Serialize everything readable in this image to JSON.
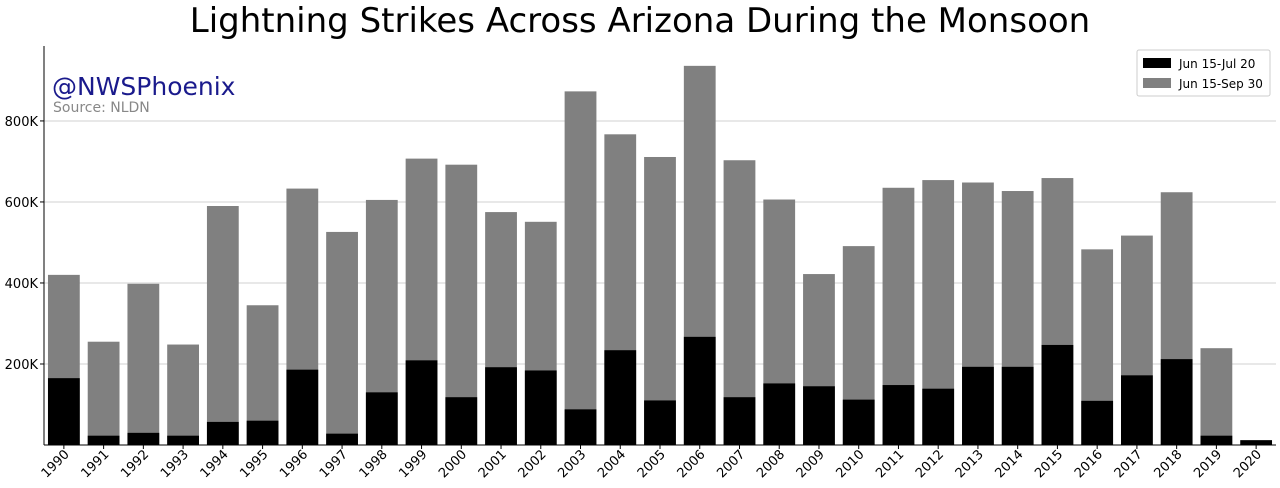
{
  "watermark": "@NWSPhoenix",
  "source": "Source: NLDN",
  "colors": {
    "short_period": "#000000",
    "full_period": "#808080",
    "grid": "#d0d0d0"
  },
  "chart_data": {
    "type": "bar",
    "title": "Lightning Strikes Across Arizona During the Monsoon",
    "xlabel": "",
    "ylabel": "",
    "categories": [
      "1990",
      "1991",
      "1992",
      "1993",
      "1994",
      "1995",
      "1996",
      "1997",
      "1998",
      "1999",
      "2000",
      "2001",
      "2002",
      "2003",
      "2004",
      "2005",
      "2006",
      "2007",
      "2008",
      "2009",
      "2010",
      "2011",
      "2012",
      "2013",
      "2014",
      "2015",
      "2016",
      "2017",
      "2018",
      "2019",
      "2020"
    ],
    "series": [
      {
        "name": "Jun 15-Sep 30",
        "color": "#808080",
        "values": [
          420000,
          255000,
          398000,
          248000,
          590000,
          345000,
          633000,
          526000,
          605000,
          707000,
          692000,
          575000,
          551000,
          873000,
          767000,
          711000,
          936000,
          703000,
          606000,
          422000,
          491000,
          635000,
          654000,
          648000,
          627000,
          659000,
          483000,
          517000,
          624000,
          239000,
          null
        ]
      },
      {
        "name": "Jun 15-Jul 20",
        "color": "#000000",
        "values": [
          165000,
          23000,
          30000,
          23000,
          57000,
          60000,
          186000,
          28000,
          130000,
          209000,
          118000,
          192000,
          184000,
          88000,
          234000,
          110000,
          267000,
          118000,
          152000,
          145000,
          112000,
          148000,
          139000,
          193000,
          193000,
          247000,
          109000,
          172000,
          212000,
          23000,
          12000
        ]
      }
    ],
    "yticks": [
      200000,
      400000,
      600000,
      800000
    ],
    "ytick_labels": [
      "200K",
      "400K",
      "600K",
      "800K"
    ],
    "ylim": [
      0,
      985000
    ],
    "grid": "horizontal",
    "legend_position": "top-right",
    "legend_order": [
      "Jun 15-Jul 20",
      "Jun 15-Sep 30"
    ]
  }
}
